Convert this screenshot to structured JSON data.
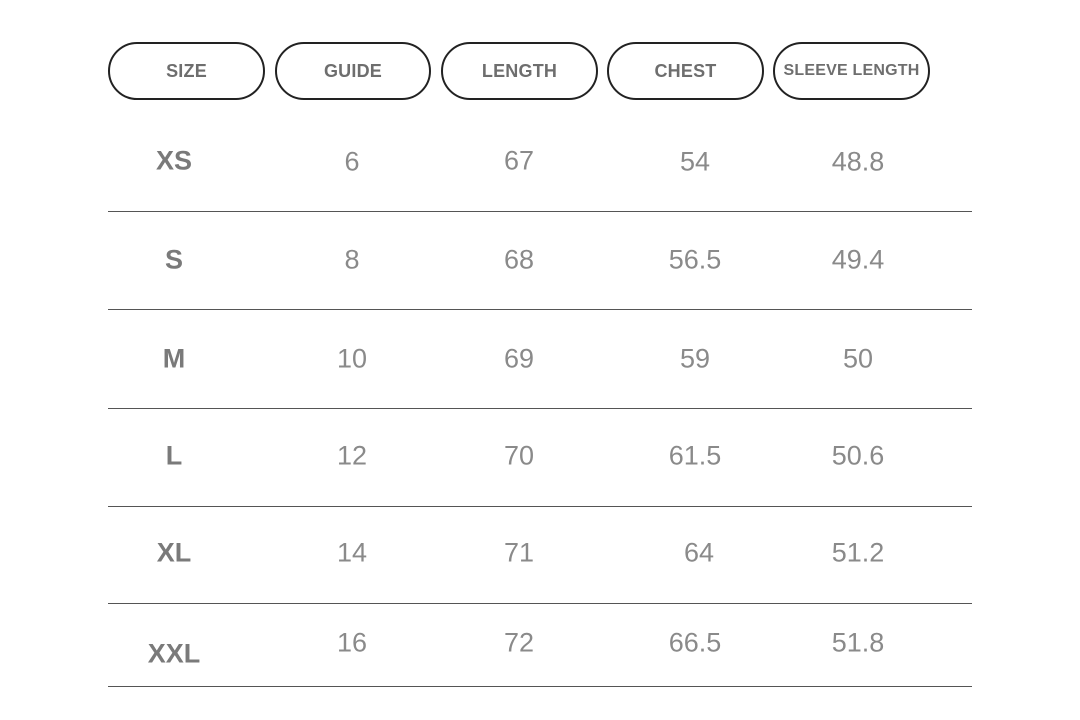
{
  "table": {
    "headers": [
      "SIZE",
      "GUIDE",
      "LENGTH",
      "CHEST",
      "SLEEVE LENGTH"
    ],
    "rows": [
      {
        "size": "XS",
        "guide": "6",
        "length": "67",
        "chest": "54",
        "sleeve": "48.8"
      },
      {
        "size": "S",
        "guide": "8",
        "length": "68",
        "chest": "56.5",
        "sleeve": "49.4"
      },
      {
        "size": "M",
        "guide": "10",
        "length": "69",
        "chest": "59",
        "sleeve": "50"
      },
      {
        "size": "L",
        "guide": "12",
        "length": "70",
        "chest": "61.5",
        "sleeve": "50.6"
      },
      {
        "size": "XL",
        "guide": "14",
        "length": "71",
        "chest": "64",
        "sleeve": "51.2"
      },
      {
        "size": "XXL",
        "guide": "16",
        "length": "72",
        "chest": "66.5",
        "sleeve": "51.8"
      }
    ]
  },
  "colors": {
    "header_border": "#222222",
    "header_text": "#6e6e6e",
    "cell_text": "#8a8a8a",
    "divider": "#555555"
  }
}
